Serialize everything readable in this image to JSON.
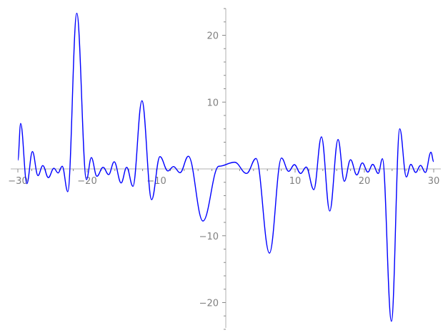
{
  "chart_data": {
    "type": "line",
    "title": "",
    "xlabel": "",
    "ylabel": "",
    "xlim": [
      -30,
      30
    ],
    "ylim": [
      -24,
      24
    ],
    "grid": false,
    "line_color": "#0000ff",
    "axis_color": "#cccccc",
    "tick_label_color": "#808080",
    "x_ticks": [
      -30,
      -20,
      -10,
      10,
      20,
      30
    ],
    "x_tick_labels": [
      "−30",
      "−20",
      "−10",
      "10",
      "20",
      "30"
    ],
    "y_ticks": [
      -20,
      -10,
      10,
      20
    ],
    "y_tick_labels": [
      "−20",
      "−10",
      "10",
      "20"
    ],
    "minor_tick_step": 2,
    "series": [
      {
        "points": [
          [
            -30,
            1.3
          ],
          [
            -29.6,
            6.8
          ],
          [
            -28.7,
            -2.2
          ],
          [
            -27.9,
            2.6
          ],
          [
            -27.1,
            -1.0
          ],
          [
            -26.4,
            0.5
          ],
          [
            -25.6,
            -1.3
          ],
          [
            -24.8,
            0.1
          ],
          [
            -24.2,
            -0.6
          ],
          [
            -23.6,
            0.4
          ],
          [
            -22.8,
            -3.4
          ],
          [
            -21.5,
            23.3
          ],
          [
            -20.1,
            -1.6
          ],
          [
            -19.4,
            1.7
          ],
          [
            -18.6,
            -1.1
          ],
          [
            -17.7,
            0.25
          ],
          [
            -16.9,
            -0.85
          ],
          [
            -16.1,
            1.07
          ],
          [
            -15.1,
            -2.1
          ],
          [
            -14.3,
            0.25
          ],
          [
            -13.4,
            -2.6
          ],
          [
            -12.1,
            10.2
          ],
          [
            -10.7,
            -4.6
          ],
          [
            -9.5,
            1.85
          ],
          [
            -8.35,
            -0.3
          ],
          [
            -7.55,
            0.35
          ],
          [
            -6.6,
            -0.57
          ],
          [
            -5.4,
            1.9
          ],
          [
            -3.3,
            -7.8
          ],
          [
            -1.0,
            0.4
          ],
          [
            1.27,
            1.0
          ],
          [
            3.0,
            -0.67
          ],
          [
            4.36,
            1.56
          ],
          [
            6.3,
            -12.6
          ],
          [
            8.04,
            1.63
          ],
          [
            9.07,
            -0.36
          ],
          [
            9.9,
            0.64
          ],
          [
            10.8,
            -0.68
          ],
          [
            11.6,
            0.28
          ],
          [
            12.7,
            -3.1
          ],
          [
            13.8,
            4.8
          ],
          [
            15.0,
            -6.3
          ],
          [
            16.2,
            4.4
          ],
          [
            17.1,
            -1.85
          ],
          [
            18.0,
            1.38
          ],
          [
            18.9,
            -0.9
          ],
          [
            19.7,
            0.9
          ],
          [
            20.5,
            -0.47
          ],
          [
            21.2,
            0.68
          ],
          [
            22.0,
            -0.68
          ],
          [
            22.6,
            1.53
          ],
          [
            23.9,
            -22.8
          ],
          [
            25.1,
            6.0
          ],
          [
            26.05,
            -1.2
          ],
          [
            26.7,
            0.68
          ],
          [
            27.4,
            -0.53
          ],
          [
            28.1,
            0.53
          ],
          [
            28.8,
            -0.53
          ],
          [
            29.6,
            2.5
          ],
          [
            30,
            1.1
          ]
        ]
      }
    ]
  }
}
